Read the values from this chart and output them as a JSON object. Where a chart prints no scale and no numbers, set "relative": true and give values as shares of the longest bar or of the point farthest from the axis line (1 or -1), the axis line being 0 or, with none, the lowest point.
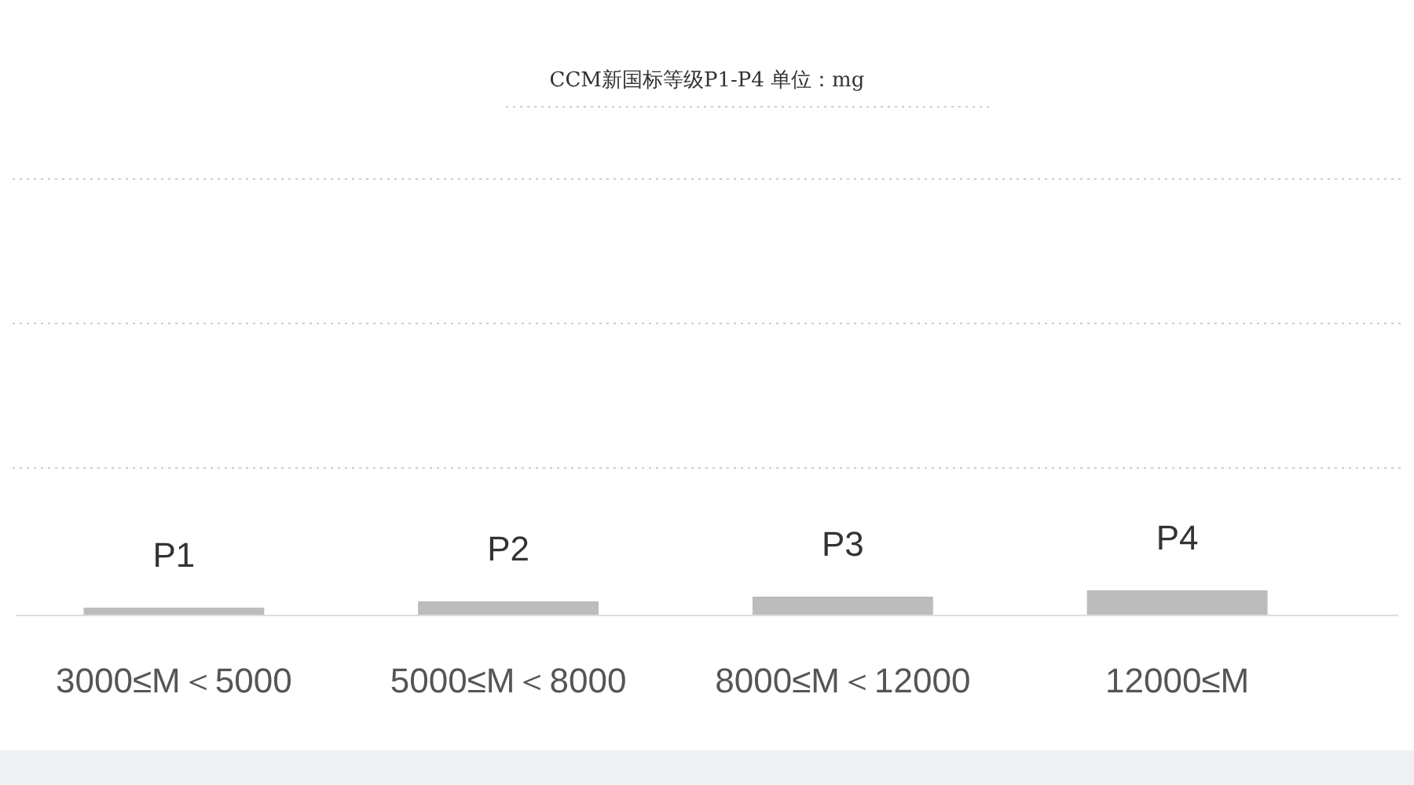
{
  "chart_data": {
    "type": "bar",
    "title": "CCM新国标等级P1-P4 单位：mg",
    "categories": [
      "3000≤M＜5000",
      "5000≤M＜8000",
      "8000≤M＜12000",
      "12000≤M"
    ],
    "values": [
      0.31,
      0.56,
      0.75,
      1
    ],
    "color": "#bcbcbc",
    "relative": true,
    "annotations": [
      {
        "text": "P1",
        "x": "3000≤M＜5000",
        "y": 0.31
      },
      {
        "text": "P2",
        "x": "5000≤M＜8000",
        "y": 0.56
      },
      {
        "text": "P3",
        "x": "8000≤M＜12000",
        "y": 0.75
      },
      {
        "text": "P4",
        "x": "12000≤M",
        "y": 1
      }
    ]
  }
}
